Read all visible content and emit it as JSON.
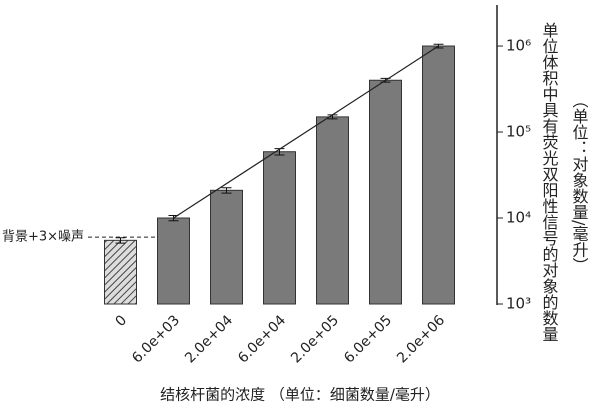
{
  "chart_data": {
    "type": "bar",
    "log_scale": true,
    "categories": [
      "0",
      "6.0e+03",
      "2.0e+04",
      "6.0e+04",
      "2.0e+05",
      "6.0e+05",
      "2.0e+06"
    ],
    "values": [
      5500,
      10000,
      21000,
      59000,
      150000,
      400000,
      1000000
    ],
    "errors": [
      400,
      700,
      1500,
      5000,
      8000,
      20000,
      50000
    ],
    "color": "#7a7a7a",
    "trendline": true,
    "threshold": {
      "label": "背景+3×噪声",
      "value": 6000
    },
    "ylim": [
      1000,
      3000000
    ],
    "yticks": [
      {
        "value": 1000,
        "label": "10³"
      },
      {
        "value": 10000,
        "label": "10⁴"
      },
      {
        "value": 100000,
        "label": "10⁵"
      },
      {
        "value": 1000000,
        "label": "10⁶"
      }
    ],
    "xlabel": "结核杆菌的浓度 （单位：细菌数量/毫升）",
    "ylabel": "单位体积中具有荧光双阳性信号的对象的数量",
    "ylabel_unit": "（单位：对象数量/毫升）"
  }
}
